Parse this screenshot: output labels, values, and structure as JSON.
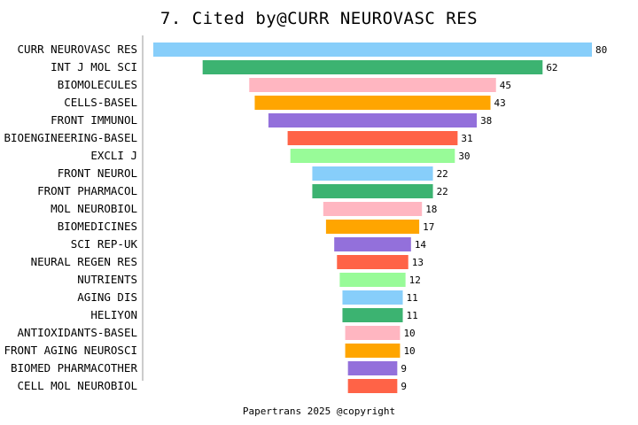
{
  "chart_data": {
    "type": "bar",
    "orientation": "horizontal-centered",
    "title": "7. Cited by@CURR NEUROVASC RES",
    "categories": [
      "CURR NEUROVASC RES",
      "INT J MOL SCI",
      "BIOMOLECULES",
      "CELLS-BASEL",
      "FRONT IMMUNOL",
      "BIOENGINEERING-BASEL",
      "EXCLI J",
      "FRONT NEUROL",
      "FRONT PHARMACOL",
      "MOL NEUROBIOL",
      "BIOMEDICINES",
      "SCI REP-UK",
      "NEURAL REGEN RES",
      "NUTRIENTS",
      "AGING DIS",
      "HELIYON",
      "ANTIOXIDANTS-BASEL",
      "FRONT AGING NEUROSCI",
      "BIOMED PHARMACOTHER",
      "CELL MOL NEUROBIOL"
    ],
    "values": [
      80,
      62,
      45,
      43,
      38,
      31,
      30,
      22,
      22,
      18,
      17,
      14,
      13,
      12,
      11,
      11,
      10,
      10,
      9,
      9
    ],
    "colors": [
      "#87CEFA",
      "#3CB371",
      "#FFB6C1",
      "#FFA500",
      "#9370DB",
      "#FF6347",
      "#98FB98"
    ],
    "grid": false,
    "legend": "none"
  },
  "footer": "Papertrans 2025 @copyright"
}
